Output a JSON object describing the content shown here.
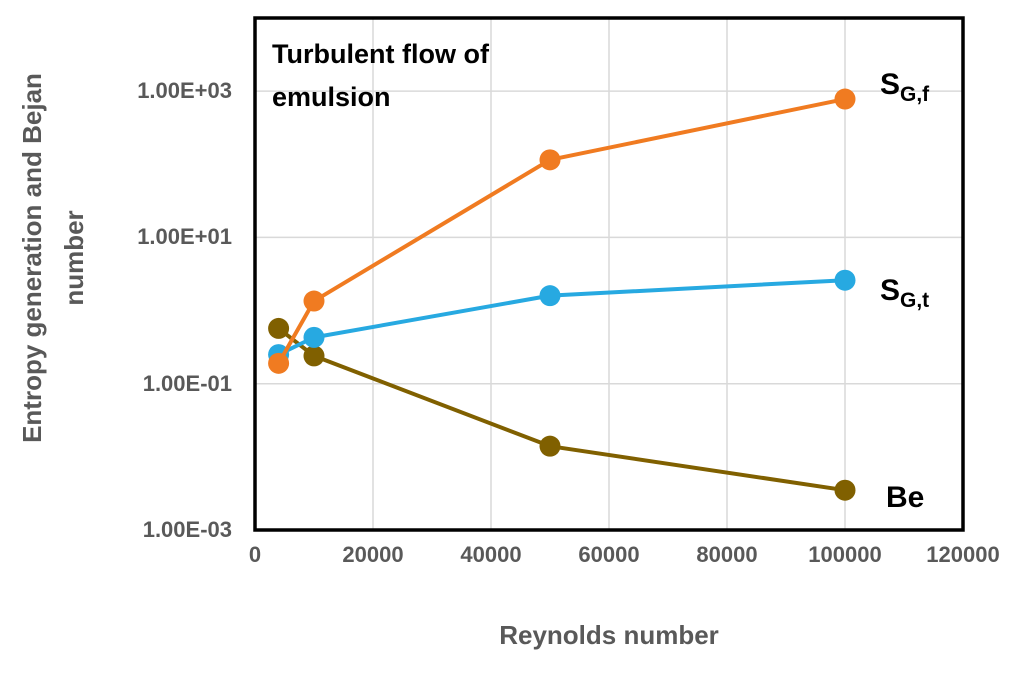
{
  "chart_data": {
    "type": "line",
    "yscale": "log",
    "grid": true,
    "title_annotation": [
      "Turbulent flow of",
      "emulsion"
    ],
    "xlabel": "Reynolds number",
    "ylabel_lines": [
      "Entropy generation and Bejan",
      "number"
    ],
    "xlim": [
      0,
      120000
    ],
    "ylim": [
      0.001,
      10000
    ],
    "x_ticks": [
      0,
      20000,
      40000,
      60000,
      80000,
      100000,
      120000
    ],
    "x_tick_labels": [
      "0",
      "20000",
      "40000",
      "60000",
      "80000",
      "100000",
      "120000"
    ],
    "y_tick_values": [
      1000,
      10,
      0.1,
      0.001
    ],
    "y_tick_labels": [
      "1.00E+03",
      "1.00E+01",
      "1.00E-01",
      "1.00E-03"
    ],
    "x": [
      4000,
      10000,
      50000,
      100000
    ],
    "series": [
      {
        "name": "S_G,f",
        "label_main": "S",
        "label_sub": "G,f",
        "color": "#F07B21",
        "values": [
          0.19,
          1.35,
          115,
          780
        ]
      },
      {
        "name": "S_G,t",
        "label_main": "S",
        "label_sub": "G,t",
        "color": "#27A9E1",
        "values": [
          0.25,
          0.43,
          1.6,
          2.6
        ]
      },
      {
        "name": "Be",
        "label_main": "Be",
        "label_sub": "",
        "color": "#806000",
        "values": [
          0.57,
          0.24,
          0.014,
          0.0035
        ]
      }
    ],
    "colors": {
      "background": "#FFFFFF",
      "plot_border": "#000000",
      "gridline": "#D9D9D9",
      "axis_text": "#595959",
      "annotation_text": "#000000"
    }
  }
}
